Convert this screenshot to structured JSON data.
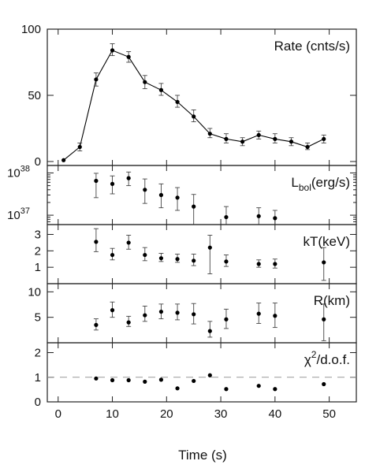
{
  "chart_data": {
    "type": "scatter",
    "xlabel": "Time (s)",
    "xlim": [
      -2,
      55
    ],
    "xticks": [
      0,
      10,
      20,
      30,
      40,
      50
    ],
    "panels": [
      {
        "label": "Rate (cnts/s)",
        "ylim": [
          -3,
          100
        ],
        "yscale": "linear",
        "yticks": [
          {
            "v": 0,
            "t": "0"
          },
          {
            "v": 50,
            "t": "50"
          },
          {
            "v": 100,
            "t": "100"
          }
        ],
        "connected": true,
        "points": [
          {
            "x": 1,
            "y": 1,
            "lo": 1,
            "hi": 1
          },
          {
            "x": 4,
            "y": 11,
            "lo": 8,
            "hi": 14
          },
          {
            "x": 7,
            "y": 62,
            "lo": 57,
            "hi": 67
          },
          {
            "x": 10,
            "y": 84,
            "lo": 80,
            "hi": 89
          },
          {
            "x": 13,
            "y": 79,
            "lo": 75,
            "hi": 83
          },
          {
            "x": 16,
            "y": 60,
            "lo": 55,
            "hi": 65
          },
          {
            "x": 19,
            "y": 54,
            "lo": 50,
            "hi": 59
          },
          {
            "x": 22,
            "y": 45,
            "lo": 41,
            "hi": 50
          },
          {
            "x": 25,
            "y": 34,
            "lo": 30,
            "hi": 39
          },
          {
            "x": 28,
            "y": 21,
            "lo": 18,
            "hi": 25
          },
          {
            "x": 31,
            "y": 17,
            "lo": 14,
            "hi": 21
          },
          {
            "x": 34,
            "y": 15,
            "lo": 12,
            "hi": 18
          },
          {
            "x": 37,
            "y": 20,
            "lo": 17,
            "hi": 23
          },
          {
            "x": 40,
            "y": 17,
            "lo": 14,
            "hi": 21
          },
          {
            "x": 43,
            "y": 15,
            "lo": 12,
            "hi": 18
          },
          {
            "x": 46,
            "y": 11,
            "lo": 9,
            "hi": 14
          },
          {
            "x": 49,
            "y": 17,
            "lo": 14,
            "hi": 20
          }
        ]
      },
      {
        "label_main": "L",
        "label_sub": "bol",
        "label_rest": "(erg/s)",
        "ylim": [
          6e+36,
          1.5e+38
        ],
        "yscale": "log",
        "yticks": [
          {
            "v": 1e+37,
            "t": "10",
            "sup": "37"
          },
          {
            "v": 1e+38,
            "t": "10",
            "sup": "38"
          }
        ],
        "connected": false,
        "points": [
          {
            "x": 7,
            "y": 6.5e+37,
            "lo": 2.6e+37,
            "hi": 9.8e+37
          },
          {
            "x": 10,
            "y": 5.5e+37,
            "lo": 3.2e+37,
            "hi": 8.5e+37
          },
          {
            "x": 13,
            "y": 7.5e+37,
            "lo": 5e+37,
            "hi": 1.05e+38
          },
          {
            "x": 16,
            "y": 4e+37,
            "lo": 1.9e+37,
            "hi": 7.2e+37
          },
          {
            "x": 19,
            "y": 3e+37,
            "lo": 1.5e+37,
            "hi": 5.5e+37
          },
          {
            "x": 22,
            "y": 2.6e+37,
            "lo": 1.3e+37,
            "hi": 4.5e+37
          },
          {
            "x": 25,
            "y": 1.6e+37,
            "lo": 6e+36,
            "hi": 3.1e+37
          },
          {
            "x": 31,
            "y": 9e+36,
            "lo": 6e+36,
            "hi": 1.6e+37
          },
          {
            "x": 37,
            "y": 9.5e+36,
            "lo": 6e+36,
            "hi": 1.5e+37
          },
          {
            "x": 40,
            "y": 8.5e+36,
            "lo": 6e+36,
            "hi": 1.3e+37
          }
        ]
      },
      {
        "label": "kT(keV)",
        "ylim": [
          0,
          3.6
        ],
        "yscale": "linear",
        "yticks": [
          {
            "v": 1,
            "t": "1"
          },
          {
            "v": 2,
            "t": "2"
          },
          {
            "v": 3,
            "t": "3"
          }
        ],
        "connected": false,
        "points": [
          {
            "x": 7,
            "y": 2.55,
            "lo": 1.95,
            "hi": 3.35
          },
          {
            "x": 10,
            "y": 1.75,
            "lo": 1.45,
            "hi": 2.15
          },
          {
            "x": 13,
            "y": 2.5,
            "lo": 2.1,
            "hi": 2.95
          },
          {
            "x": 16,
            "y": 1.75,
            "lo": 1.4,
            "hi": 2.2
          },
          {
            "x": 19,
            "y": 1.55,
            "lo": 1.35,
            "hi": 1.85
          },
          {
            "x": 22,
            "y": 1.5,
            "lo": 1.3,
            "hi": 1.8
          },
          {
            "x": 25,
            "y": 1.4,
            "lo": 1.1,
            "hi": 1.8
          },
          {
            "x": 28,
            "y": 2.2,
            "lo": 0.6,
            "hi": 2.95
          },
          {
            "x": 31,
            "y": 1.35,
            "lo": 1.05,
            "hi": 1.75
          },
          {
            "x": 37,
            "y": 1.2,
            "lo": 1.0,
            "hi": 1.45
          },
          {
            "x": 40,
            "y": 1.2,
            "lo": 0.95,
            "hi": 1.5
          },
          {
            "x": 49,
            "y": 1.3,
            "lo": 0.2,
            "hi": 2.2
          }
        ]
      },
      {
        "label": "R(km)",
        "ylim": [
          0,
          11.6
        ],
        "yscale": "linear",
        "yticks": [
          {
            "v": 5,
            "t": "5"
          },
          {
            "v": 10,
            "t": "10"
          }
        ],
        "connected": false,
        "points": [
          {
            "x": 7,
            "y": 3.5,
            "lo": 2.5,
            "hi": 4.7
          },
          {
            "x": 10,
            "y": 6.4,
            "lo": 5.0,
            "hi": 8.0
          },
          {
            "x": 13,
            "y": 4.0,
            "lo": 3.2,
            "hi": 5.2
          },
          {
            "x": 16,
            "y": 5.4,
            "lo": 4.2,
            "hi": 7.2
          },
          {
            "x": 19,
            "y": 6.1,
            "lo": 4.7,
            "hi": 7.6
          },
          {
            "x": 22,
            "y": 5.9,
            "lo": 4.5,
            "hi": 7.6
          },
          {
            "x": 25,
            "y": 5.6,
            "lo": 3.7,
            "hi": 7.7
          },
          {
            "x": 28,
            "y": 2.3,
            "lo": 1.1,
            "hi": 4.2
          },
          {
            "x": 31,
            "y": 4.6,
            "lo": 2.8,
            "hi": 6.6
          },
          {
            "x": 37,
            "y": 5.7,
            "lo": 3.8,
            "hi": 7.8
          },
          {
            "x": 40,
            "y": 5.3,
            "lo": 3.0,
            "hi": 7.8
          },
          {
            "x": 49,
            "y": 4.6,
            "lo": 0.4,
            "hi": 7.6
          }
        ]
      },
      {
        "label_main": "χ",
        "label_sup": "2",
        "label_rest": "/d.o.f.",
        "ylim": [
          0,
          2.4
        ],
        "yscale": "linear",
        "yticks": [
          {
            "v": 0,
            "t": "0"
          },
          {
            "v": 1,
            "t": "1"
          },
          {
            "v": 2,
            "t": "2"
          }
        ],
        "connected": false,
        "reference_line": 1,
        "points": [
          {
            "x": 7,
            "y": 0.95
          },
          {
            "x": 10,
            "y": 0.88
          },
          {
            "x": 13,
            "y": 0.88
          },
          {
            "x": 16,
            "y": 0.82
          },
          {
            "x": 19,
            "y": 0.9
          },
          {
            "x": 22,
            "y": 0.55
          },
          {
            "x": 25,
            "y": 0.85
          },
          {
            "x": 28,
            "y": 1.08
          },
          {
            "x": 31,
            "y": 0.52
          },
          {
            "x": 37,
            "y": 0.65
          },
          {
            "x": 40,
            "y": 0.52
          },
          {
            "x": 49,
            "y": 0.72
          }
        ]
      }
    ]
  }
}
